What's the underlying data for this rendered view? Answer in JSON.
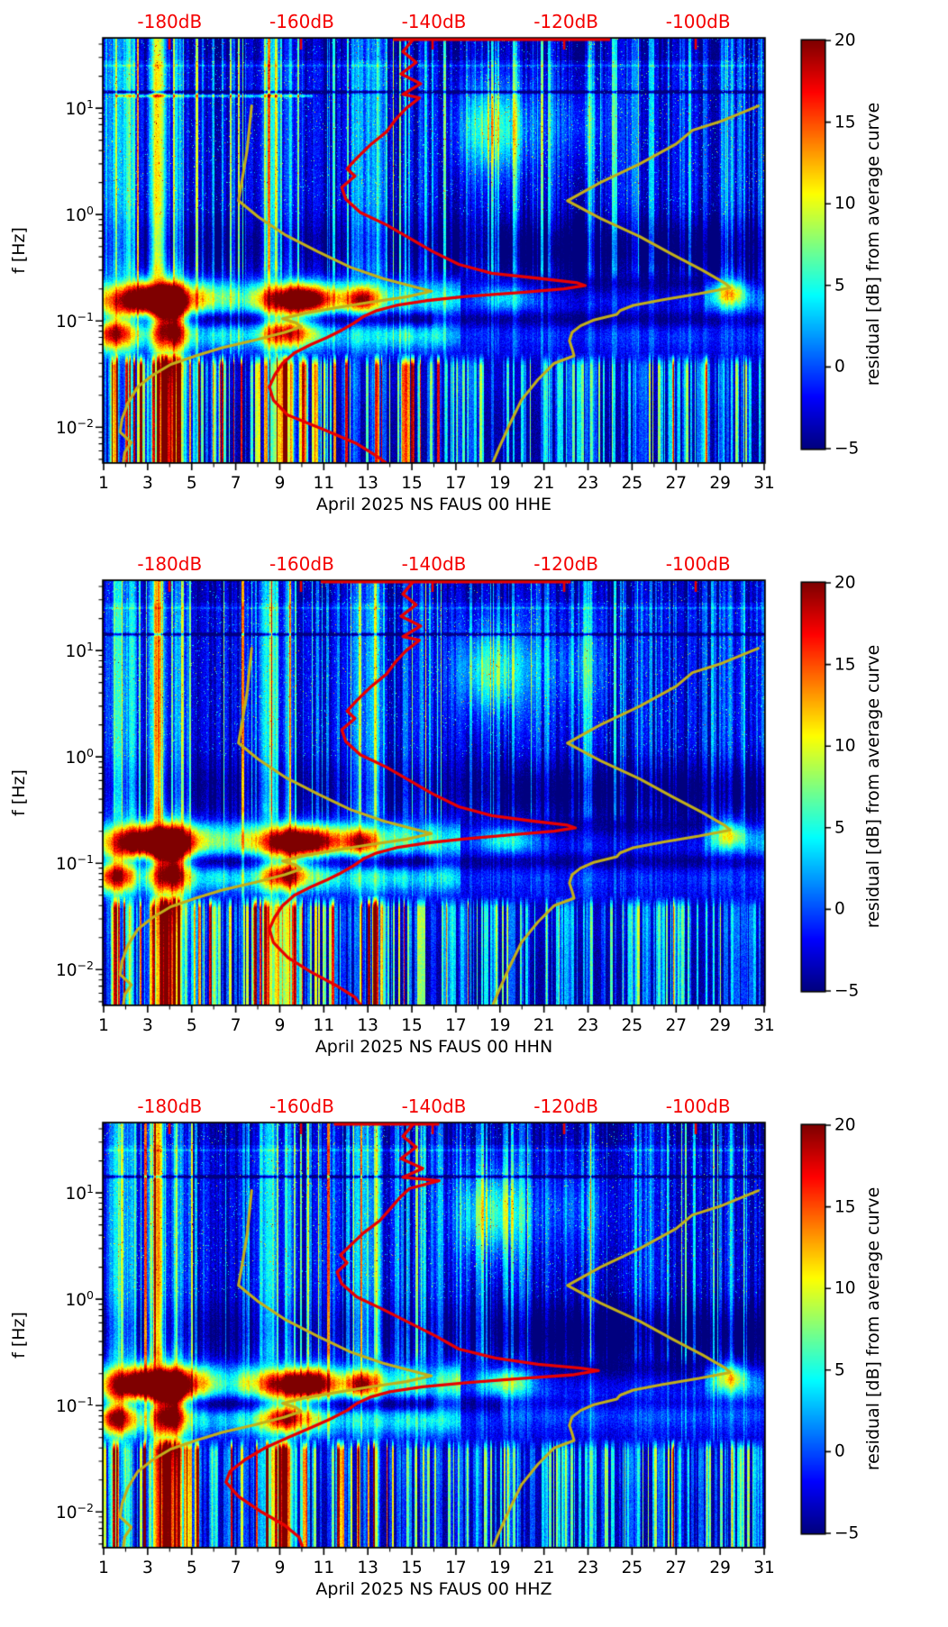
{
  "chart_data": {
    "type": "heatmap",
    "title": "",
    "description": "Three stacked daily PSD-residual spectrograms (jet colormap) for station NS FAUS 00, April 2025, components HHE/HHN/HHZ, with average PSD curve (red) and noise-model curves (olive) overlaid against the top dB axis.",
    "panels": [
      {
        "id": "HHE",
        "xlabel": "April 2025 NS FAUS 00 HHE",
        "spot_boost": 0.8,
        "has_13hz_line": true,
        "red_top_segment": [
          -146,
          -113
        ],
        "red_curve": [
          [
            -143,
            44
          ],
          [
            -144.5,
            34
          ],
          [
            -142.5,
            27
          ],
          [
            -144.8,
            21
          ],
          [
            -141.8,
            17
          ],
          [
            -144.5,
            13.5
          ],
          [
            -142,
            12.5
          ],
          [
            -144,
            10
          ],
          [
            -145.5,
            8
          ],
          [
            -147,
            6
          ],
          [
            -149.5,
            4.5
          ],
          [
            -151.5,
            3.4
          ],
          [
            -153,
            2.7
          ],
          [
            -151.8,
            2.3
          ],
          [
            -153.8,
            1.8
          ],
          [
            -153.2,
            1.4
          ],
          [
            -151,
            1.05
          ],
          [
            -147,
            0.8
          ],
          [
            -143.5,
            0.6
          ],
          [
            -140,
            0.45
          ],
          [
            -136,
            0.34
          ],
          [
            -131,
            0.28
          ],
          [
            -123.5,
            0.25
          ],
          [
            -118,
            0.228
          ],
          [
            -116.8,
            0.215
          ],
          [
            -120,
            0.2
          ],
          [
            -126.5,
            0.185
          ],
          [
            -135,
            0.17
          ],
          [
            -141,
            0.155
          ],
          [
            -145.5,
            0.14
          ],
          [
            -148.5,
            0.125
          ],
          [
            -150.5,
            0.11
          ],
          [
            -152,
            0.095
          ],
          [
            -153.8,
            0.082
          ],
          [
            -156,
            0.07
          ],
          [
            -158.5,
            0.06
          ],
          [
            -161,
            0.05
          ],
          [
            -162.8,
            0.04
          ],
          [
            -164,
            0.031
          ],
          [
            -164.8,
            0.024
          ],
          [
            -164.2,
            0.018
          ],
          [
            -162,
            0.013
          ],
          [
            -156.5,
            0.0095
          ],
          [
            -151.5,
            0.007
          ],
          [
            -148.8,
            0.0055
          ],
          [
            -147.2,
            0.0047
          ]
        ]
      },
      {
        "id": "HHN",
        "xlabel": "April 2025 NS FAUS 00 HHN",
        "spot_boost": 1.0,
        "has_13hz_line": false,
        "red_top_segment": [
          -157,
          -119
        ],
        "red_curve": [
          [
            -143,
            44
          ],
          [
            -144.5,
            34
          ],
          [
            -142.5,
            27
          ],
          [
            -144.8,
            21
          ],
          [
            -141.8,
            17
          ],
          [
            -144.5,
            13.5
          ],
          [
            -142,
            12.5
          ],
          [
            -144,
            10
          ],
          [
            -145.5,
            8
          ],
          [
            -147,
            6
          ],
          [
            -149.5,
            4.5
          ],
          [
            -151.5,
            3.4
          ],
          [
            -153,
            2.7
          ],
          [
            -151.8,
            2.3
          ],
          [
            -153.8,
            1.8
          ],
          [
            -153.2,
            1.4
          ],
          [
            -151,
            1.05
          ],
          [
            -147,
            0.8
          ],
          [
            -143.5,
            0.6
          ],
          [
            -140,
            0.45
          ],
          [
            -136,
            0.34
          ],
          [
            -131,
            0.28
          ],
          [
            -125,
            0.25
          ],
          [
            -119.5,
            0.228
          ],
          [
            -118.3,
            0.215
          ],
          [
            -121.5,
            0.2
          ],
          [
            -128,
            0.185
          ],
          [
            -135,
            0.17
          ],
          [
            -141,
            0.155
          ],
          [
            -145.5,
            0.14
          ],
          [
            -148.5,
            0.125
          ],
          [
            -150.5,
            0.11
          ],
          [
            -152,
            0.095
          ],
          [
            -153.8,
            0.082
          ],
          [
            -156,
            0.07
          ],
          [
            -158.5,
            0.06
          ],
          [
            -161,
            0.05
          ],
          [
            -162.8,
            0.04
          ],
          [
            -164,
            0.031
          ],
          [
            -164.8,
            0.024
          ],
          [
            -164.2,
            0.018
          ],
          [
            -162,
            0.013
          ],
          [
            -158.5,
            0.0095
          ],
          [
            -154.5,
            0.007
          ],
          [
            -151.8,
            0.0055
          ],
          [
            -151,
            0.0047
          ]
        ]
      },
      {
        "id": "HHZ",
        "xlabel": "April 2025 NS FAUS 00 HHZ",
        "spot_boost": 1.35,
        "has_13hz_line": false,
        "red_top_segment": [
          -155,
          -139
        ],
        "red_curve": [
          [
            -143,
            44
          ],
          [
            -144.5,
            34
          ],
          [
            -142.5,
            27
          ],
          [
            -144.8,
            21
          ],
          [
            -141.5,
            17
          ],
          [
            -144.5,
            14
          ],
          [
            -139,
            13
          ],
          [
            -143.5,
            11
          ],
          [
            -145,
            9
          ],
          [
            -146.5,
            7
          ],
          [
            -148,
            5.5
          ],
          [
            -150.5,
            4.2
          ],
          [
            -152.5,
            3.2
          ],
          [
            -154,
            2.6
          ],
          [
            -153,
            2.2
          ],
          [
            -154.5,
            1.8
          ],
          [
            -153.8,
            1.4
          ],
          [
            -151.5,
            1.05
          ],
          [
            -147.5,
            0.8
          ],
          [
            -143.5,
            0.6
          ],
          [
            -139.5,
            0.45
          ],
          [
            -136,
            0.34
          ],
          [
            -130.5,
            0.28
          ],
          [
            -124,
            0.245
          ],
          [
            -117.5,
            0.225
          ],
          [
            -114.8,
            0.213
          ],
          [
            -118.5,
            0.195
          ],
          [
            -126.5,
            0.18
          ],
          [
            -134.5,
            0.165
          ],
          [
            -141.5,
            0.15
          ],
          [
            -146.5,
            0.135
          ],
          [
            -149.5,
            0.12
          ],
          [
            -151.5,
            0.105
          ],
          [
            -153,
            0.09
          ],
          [
            -155.5,
            0.075
          ],
          [
            -158.5,
            0.062
          ],
          [
            -162,
            0.05
          ],
          [
            -165.5,
            0.04
          ],
          [
            -168.5,
            0.031
          ],
          [
            -170.8,
            0.024
          ],
          [
            -171.4,
            0.019
          ],
          [
            -169.5,
            0.014
          ],
          [
            -166,
            0.01
          ],
          [
            -162.5,
            0.0075
          ],
          [
            -160.3,
            0.0058
          ],
          [
            -159.8,
            0.0047
          ]
        ]
      }
    ],
    "overlay_curves": {
      "red_color": "#e80000",
      "yellow_color": "#c2af1a",
      "yellow_low_model": [
        [
          -167.5,
          10.5
        ],
        [
          -167.8,
          7
        ],
        [
          -168.2,
          4
        ],
        [
          -168.8,
          2.4
        ],
        [
          -169.5,
          1.35
        ],
        [
          -166.5,
          0.95
        ],
        [
          -162.5,
          0.65
        ],
        [
          -157.5,
          0.45
        ],
        [
          -152.5,
          0.32
        ],
        [
          -147.5,
          0.25
        ],
        [
          -143.5,
          0.215
        ],
        [
          -140.2,
          0.19
        ],
        [
          -144,
          0.168
        ],
        [
          -149.5,
          0.15
        ],
        [
          -155,
          0.132
        ],
        [
          -159.5,
          0.118
        ],
        [
          -162.8,
          0.105
        ],
        [
          -160.8,
          0.096
        ],
        [
          -160,
          0.088
        ],
        [
          -162.5,
          0.078
        ],
        [
          -167,
          0.066
        ],
        [
          -172,
          0.056
        ],
        [
          -176,
          0.047
        ],
        [
          -179.8,
          0.039
        ],
        [
          -182.5,
          0.031
        ],
        [
          -184.8,
          0.024
        ],
        [
          -186.3,
          0.017
        ],
        [
          -187.2,
          0.012
        ],
        [
          -187.5,
          0.009
        ],
        [
          -185.8,
          0.0072
        ],
        [
          -186.8,
          0.0058
        ],
        [
          -187,
          0.0047
        ]
      ],
      "yellow_high_model": [
        [
          -90.5,
          10.5
        ],
        [
          -96,
          7.6
        ],
        [
          -100.5,
          6.2
        ],
        [
          -103,
          4.6
        ],
        [
          -108.5,
          3
        ],
        [
          -114.5,
          2
        ],
        [
          -119.5,
          1.35
        ],
        [
          -114.5,
          0.92
        ],
        [
          -108.5,
          0.62
        ],
        [
          -103.5,
          0.42
        ],
        [
          -99,
          0.3
        ],
        [
          -95.5,
          0.225
        ],
        [
          -94.8,
          0.205
        ],
        [
          -99.5,
          0.18
        ],
        [
          -105,
          0.158
        ],
        [
          -109.5,
          0.14
        ],
        [
          -111.5,
          0.125
        ],
        [
          -112,
          0.115
        ],
        [
          -115.5,
          0.102
        ],
        [
          -117.5,
          0.09
        ],
        [
          -118.8,
          0.078
        ],
        [
          -119.2,
          0.065
        ],
        [
          -118.8,
          0.055
        ],
        [
          -118.5,
          0.047
        ],
        [
          -121.5,
          0.04
        ],
        [
          -124,
          0.028
        ],
        [
          -126.5,
          0.018
        ],
        [
          -128.5,
          0.01
        ],
        [
          -130,
          0.0062
        ],
        [
          -130.8,
          0.0047
        ]
      ]
    },
    "x_axis": {
      "min": 1,
      "max": 31,
      "tick_labels": [
        "1",
        "3",
        "5",
        "7",
        "9",
        "11",
        "13",
        "15",
        "17",
        "19",
        "21",
        "23",
        "25",
        "27",
        "29",
        "31"
      ],
      "tick_values": [
        1,
        3,
        5,
        7,
        9,
        11,
        13,
        15,
        17,
        19,
        21,
        23,
        25,
        27,
        29,
        31
      ],
      "minor_tick_values": [
        2,
        4,
        6,
        8,
        10,
        12,
        14,
        16,
        18,
        20,
        22,
        24,
        26,
        28,
        30
      ]
    },
    "y_axis": {
      "label": "f [Hz]",
      "scale": "log",
      "min_hz": 0.0047,
      "max_hz": 45,
      "tick_base": "10",
      "tick_exponents": [
        "1",
        "0",
        "−1",
        "−2"
      ],
      "tick_values": [
        10,
        1,
        0.1,
        0.01
      ]
    },
    "top_axis": {
      "labels": [
        "-180dB",
        "-160dB",
        "-140dB",
        "-120dB",
        "-100dB"
      ],
      "values": [
        -180,
        -160,
        -140,
        -120,
        -100
      ],
      "min": -190,
      "max": -89.6,
      "color": "#f40000"
    },
    "colorbar": {
      "label": "residual [dB] from average curve",
      "tick_labels": [
        "20",
        "15",
        "10",
        "5",
        "0",
        "−5"
      ],
      "tick_values": [
        20,
        15,
        10,
        5,
        0,
        -5
      ],
      "min": -5,
      "max": 20,
      "colormap": "jet"
    },
    "heatmap": {
      "seeds": [
        11,
        47,
        83
      ],
      "value_range": [
        -5,
        20
      ],
      "notch_hz": 14.2,
      "microseism_band_hz": 0.17,
      "secondary_band_hz": 0.072,
      "columns_high": [
        [
          1.7,
          0.35,
          7
        ],
        [
          2.3,
          0.12,
          5
        ],
        [
          3.45,
          0.22,
          15
        ],
        [
          4.35,
          0.18,
          6
        ],
        [
          8.55,
          0.28,
          9
        ],
        [
          9.45,
          0.15,
          5
        ],
        [
          12.6,
          0.2,
          6
        ],
        [
          13.1,
          0.15,
          5
        ],
        [
          13.45,
          0.12,
          7
        ],
        [
          15.45,
          0.1,
          4
        ],
        [
          23.15,
          0.06,
          8
        ],
        [
          29.5,
          0.12,
          4
        ]
      ],
      "columns_low": [
        [
          1.5,
          0.15,
          12
        ],
        [
          2.1,
          0.12,
          10
        ],
        [
          3.9,
          0.5,
          21
        ],
        [
          5.2,
          0.1,
          6
        ],
        [
          6,
          0.1,
          8
        ],
        [
          8.8,
          0.3,
          12
        ],
        [
          9.4,
          0.2,
          12
        ],
        [
          13.4,
          0.1,
          10
        ],
        [
          17.55,
          0.035,
          11
        ],
        [
          19.35,
          0.035,
          11
        ],
        [
          21.15,
          0.035,
          10
        ],
        [
          23.15,
          0.05,
          12
        ],
        [
          26.9,
          0.035,
          11
        ],
        [
          28.4,
          0.035,
          10
        ],
        [
          29.55,
          0.04,
          9
        ]
      ],
      "blobs": [
        [
          3.2,
          -0.8,
          1.35,
          0.115,
          23
        ],
        [
          4.05,
          -1.03,
          0.5,
          0.22,
          20
        ],
        [
          9.9,
          -0.8,
          1.15,
          0.1,
          23
        ],
        [
          12.75,
          -0.8,
          0.5,
          0.09,
          14
        ],
        [
          1.55,
          -1.1,
          0.5,
          0.13,
          16
        ],
        [
          9.35,
          -1.1,
          0.75,
          0.11,
          15
        ],
        [
          18.7,
          0.81,
          1.15,
          0.28,
          8.5
        ],
        [
          22.5,
          0.85,
          1.2,
          0.25,
          3
        ],
        [
          19.3,
          -0.77,
          0.9,
          0.1,
          8
        ],
        [
          29.45,
          -0.73,
          0.55,
          0.09,
          11
        ]
      ]
    }
  }
}
